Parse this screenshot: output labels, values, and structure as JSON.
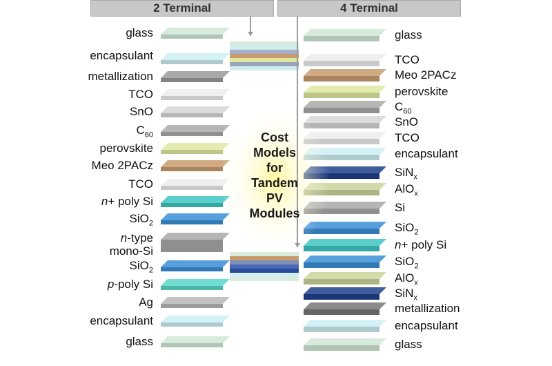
{
  "headers": {
    "two_terminal": "2 Terminal",
    "four_terminal": "4 Terminal"
  },
  "center_title": [
    "Cost",
    "Models",
    "for",
    "Tandem",
    "PV",
    "Modules"
  ],
  "left_layers": [
    {
      "text": "glass",
      "color": "#cfe8d6"
    },
    {
      "text": "encapsulant",
      "color": "#cdeef3"
    },
    {
      "text": "metallization",
      "color": "#9a9a9a"
    },
    {
      "text": "TCO",
      "color": "#ececec"
    },
    {
      "text": "SnO",
      "color": "#d6d6d6"
    },
    {
      "text": "C60",
      "color": "#a9a9a9"
    },
    {
      "text": "perovskite",
      "color": "#dfe8a0"
    },
    {
      "text": "Meo 2PACz",
      "color": "#c79b6c"
    },
    {
      "text": "TCO",
      "color": "#ececec"
    },
    {
      "text": "n+ poly Si",
      "color": "#3cc6c2"
    },
    {
      "text": "SiO2",
      "color": "#3a8fd6"
    },
    {
      "text": "n-type mono-Si",
      "color": "#a8a8a8"
    },
    {
      "text": "SiO2",
      "color": "#3a8fd6"
    },
    {
      "text": "p-poly Si",
      "color": "#58d6c8"
    },
    {
      "text": "Ag",
      "color": "#b8b8b8"
    },
    {
      "text": "encapsulant",
      "color": "#cdeef3"
    },
    {
      "text": "glass",
      "color": "#cfe8d6"
    }
  ],
  "right_layers": [
    {
      "text": "glass",
      "color": "#cfe8d6"
    },
    {
      "text": "TCO",
      "color": "#ececec"
    },
    {
      "text": "Meo 2PACz",
      "color": "#c79b6c"
    },
    {
      "text": "perovskite",
      "color": "#dfe8a0"
    },
    {
      "text": "C60",
      "color": "#a9a9a9"
    },
    {
      "text": "SnO",
      "color": "#d6d6d6"
    },
    {
      "text": "TCO",
      "color": "#ececec"
    },
    {
      "text": "encapsulant",
      "color": "#cdeef3"
    },
    {
      "text": "SiNx",
      "color": "#1f3f8a"
    },
    {
      "text": "AlOx",
      "color": "#c9d49a"
    },
    {
      "text": "Si",
      "color": "#a8a8a8"
    },
    {
      "text": "SiO2",
      "color": "#3a8fd6"
    },
    {
      "text": "n+ poly Si",
      "color": "#3cc6c2"
    },
    {
      "text": "SiO2",
      "color": "#3a8fd6"
    },
    {
      "text": "AlOx",
      "color": "#c9d49a"
    },
    {
      "text": "SiNx",
      "color": "#1f3f8a"
    },
    {
      "text": "metallization",
      "color": "#777777"
    },
    {
      "text": "encapsulant",
      "color": "#cdeef3"
    },
    {
      "text": "glass",
      "color": "#cfe8d6"
    }
  ]
}
